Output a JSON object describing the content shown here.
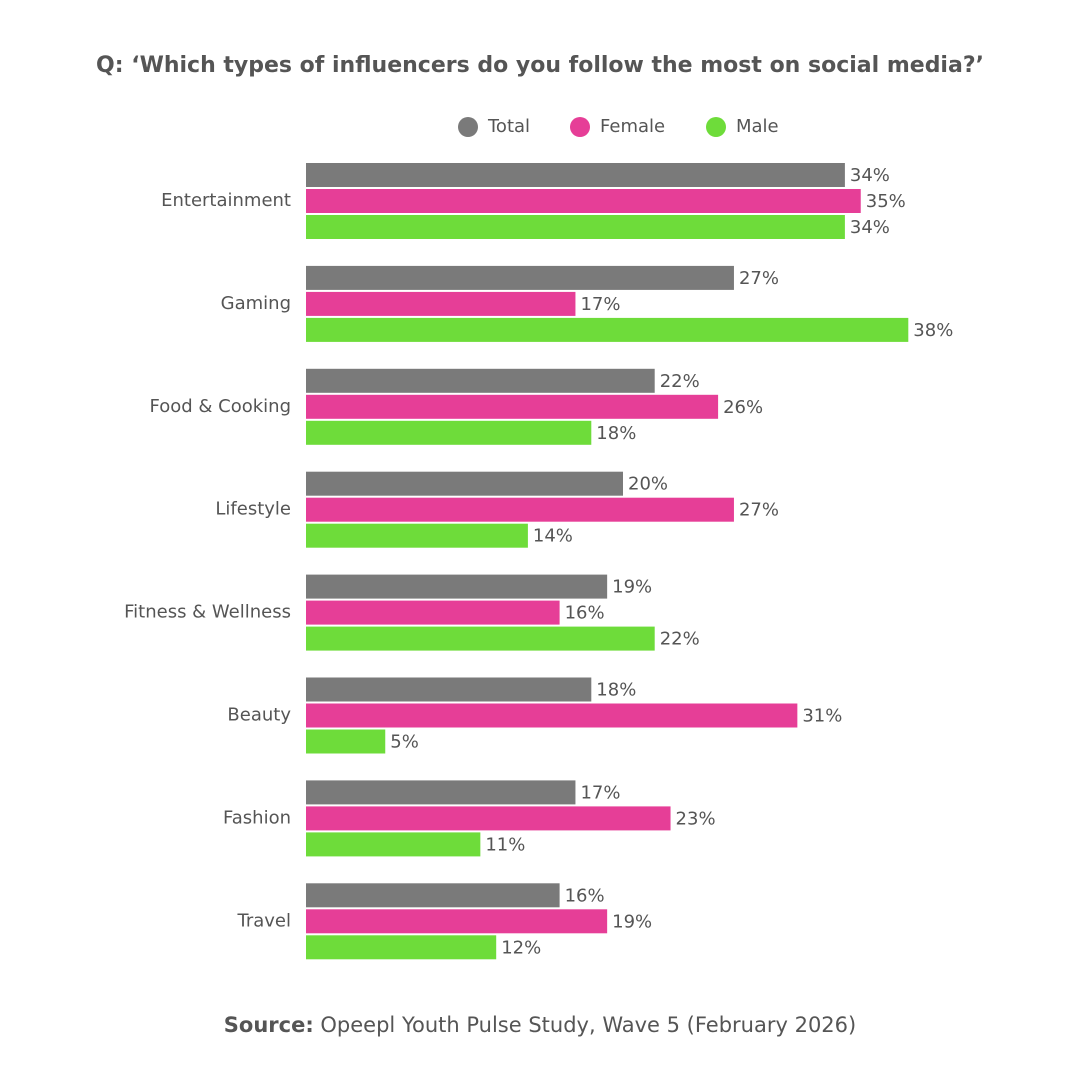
{
  "chart_data": {
    "type": "hbar",
    "title": "Q: ‘Which types of influencers do you follow the most on social media?’",
    "categories": [
      "Entertainment",
      "Gaming",
      "Food & Cooking",
      "Lifestyle",
      "Fitness & Wellness",
      "Beauty",
      "Fashion",
      "Travel"
    ],
    "series": [
      {
        "name": "Total",
        "color": "#7a7a7a",
        "values": [
          34,
          27,
          22,
          20,
          19,
          18,
          17,
          16
        ],
        "value_labels": [
          "34%",
          "27%",
          "22%",
          "20%",
          "19%",
          "18%",
          "17%",
          "16%"
        ]
      },
      {
        "name": "Female",
        "color": "#e63e97",
        "values": [
          35,
          17,
          26,
          27,
          16,
          31,
          23,
          19
        ],
        "value_labels": [
          "35%",
          "17%",
          "26%",
          "27%",
          "16%",
          "31%",
          "23%",
          "19%"
        ]
      },
      {
        "name": "Male",
        "color": "#6edc3a",
        "values": [
          34,
          38,
          18,
          14,
          22,
          5,
          11,
          12
        ],
        "value_labels": [
          "34%",
          "38%",
          "18%",
          "14%",
          "22%",
          "5%",
          "11%",
          "12%"
        ]
      }
    ],
    "source_label": "Source:",
    "source": "Opeepl Youth Pulse Study, Wave 5 (February 2026)"
  }
}
